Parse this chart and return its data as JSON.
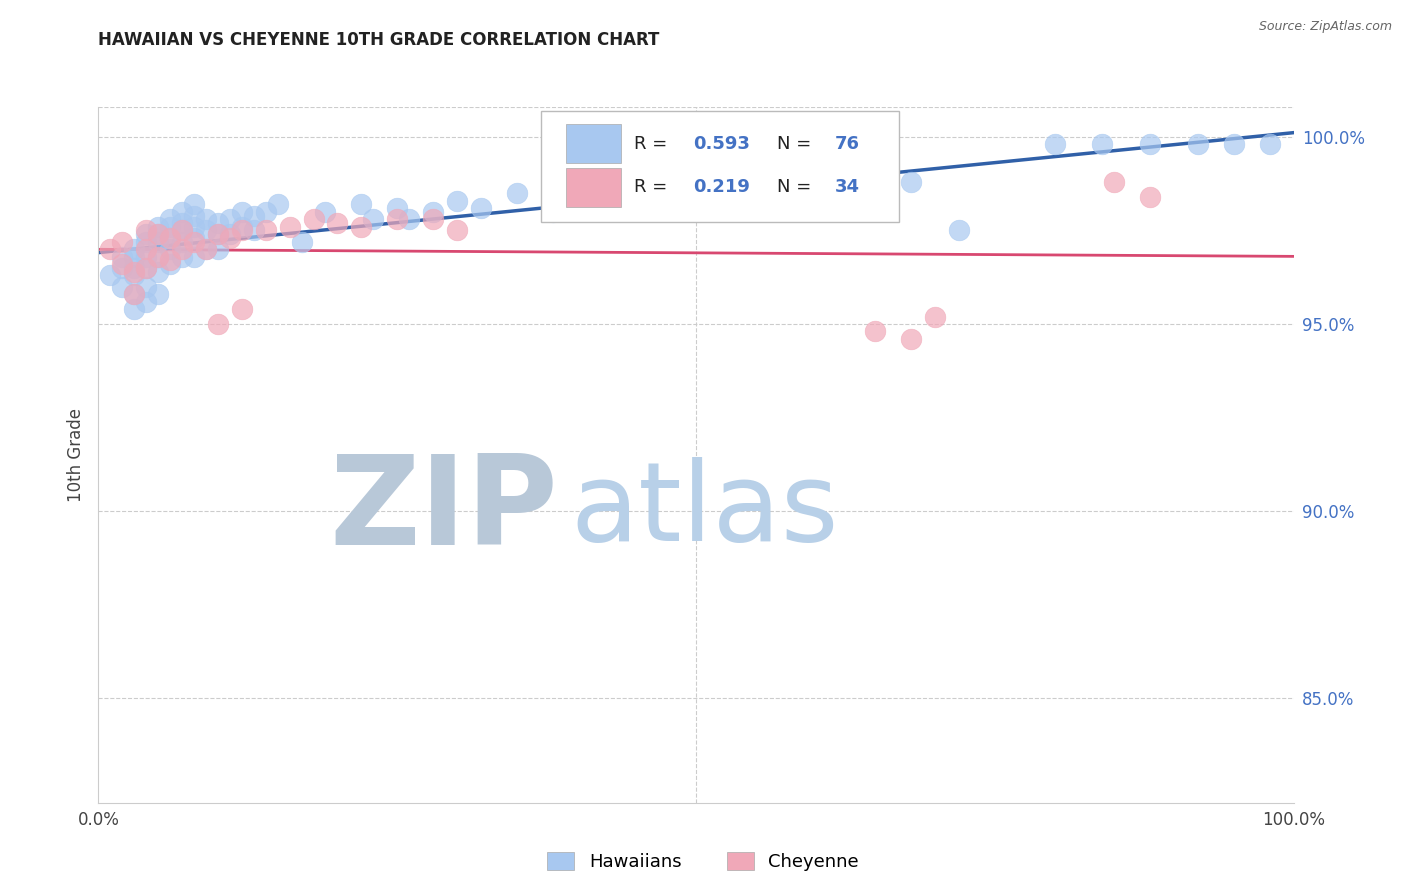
{
  "title": "HAWAIIAN VS CHEYENNE 10TH GRADE CORRELATION CHART",
  "source": "Source: ZipAtlas.com",
  "ylabel": "10th Grade",
  "ytick_values": [
    0.85,
    0.9,
    0.95,
    1.0
  ],
  "ytick_labels": [
    "85.0%",
    "90.0%",
    "95.0%",
    "100.0%"
  ],
  "xlim": [
    0.0,
    1.0
  ],
  "ylim": [
    0.822,
    1.008
  ],
  "blue_color": "#a8c8f0",
  "pink_color": "#f0a8b8",
  "blue_line_color": "#3060a8",
  "pink_line_color": "#d84870",
  "background_color": "#ffffff",
  "grid_color": "#cccccc",
  "watermark_zip_color": "#b8c8d8",
  "watermark_atlas_color": "#b8d0e8",
  "legend_r_n_color": "#4472c4",
  "hawaiian_x": [
    0.01,
    0.02,
    0.02,
    0.02,
    0.03,
    0.03,
    0.03,
    0.03,
    0.03,
    0.03,
    0.04,
    0.04,
    0.04,
    0.04,
    0.04,
    0.04,
    0.05,
    0.05,
    0.05,
    0.05,
    0.05,
    0.05,
    0.06,
    0.06,
    0.06,
    0.06,
    0.06,
    0.07,
    0.07,
    0.07,
    0.07,
    0.07,
    0.08,
    0.08,
    0.08,
    0.08,
    0.08,
    0.09,
    0.09,
    0.09,
    0.1,
    0.1,
    0.1,
    0.11,
    0.11,
    0.12,
    0.12,
    0.13,
    0.13,
    0.14,
    0.15,
    0.17,
    0.19,
    0.22,
    0.23,
    0.25,
    0.26,
    0.28,
    0.3,
    0.32,
    0.35,
    0.38,
    0.42,
    0.44,
    0.47,
    0.5,
    0.52,
    0.56,
    0.68,
    0.72,
    0.8,
    0.84,
    0.88,
    0.92,
    0.95,
    0.98
  ],
  "hawaiian_y": [
    0.963,
    0.965,
    0.968,
    0.96,
    0.97,
    0.968,
    0.965,
    0.963,
    0.958,
    0.954,
    0.974,
    0.972,
    0.968,
    0.965,
    0.96,
    0.956,
    0.976,
    0.974,
    0.972,
    0.968,
    0.964,
    0.958,
    0.978,
    0.976,
    0.973,
    0.97,
    0.966,
    0.98,
    0.977,
    0.975,
    0.972,
    0.968,
    0.982,
    0.979,
    0.976,
    0.973,
    0.968,
    0.978,
    0.975,
    0.97,
    0.977,
    0.974,
    0.97,
    0.978,
    0.974,
    0.98,
    0.976,
    0.979,
    0.975,
    0.98,
    0.982,
    0.972,
    0.98,
    0.982,
    0.978,
    0.981,
    0.978,
    0.98,
    0.983,
    0.981,
    0.985,
    0.98,
    0.987,
    0.985,
    0.988,
    0.985,
    0.984,
    0.983,
    0.988,
    0.975,
    0.998,
    0.998,
    0.998,
    0.998,
    0.998,
    0.998
  ],
  "cheyenne_x": [
    0.01,
    0.02,
    0.02,
    0.03,
    0.03,
    0.04,
    0.04,
    0.04,
    0.05,
    0.05,
    0.06,
    0.06,
    0.07,
    0.07,
    0.08,
    0.09,
    0.1,
    0.11,
    0.12,
    0.14,
    0.16,
    0.18,
    0.2,
    0.22,
    0.25,
    0.28,
    0.3,
    0.65,
    0.68,
    0.7,
    0.85,
    0.88,
    0.1,
    0.12
  ],
  "cheyenne_y": [
    0.97,
    0.966,
    0.972,
    0.964,
    0.958,
    0.975,
    0.97,
    0.965,
    0.974,
    0.968,
    0.973,
    0.967,
    0.975,
    0.97,
    0.972,
    0.97,
    0.974,
    0.973,
    0.975,
    0.975,
    0.976,
    0.978,
    0.977,
    0.976,
    0.978,
    0.978,
    0.975,
    0.948,
    0.946,
    0.952,
    0.988,
    0.984,
    0.95,
    0.954
  ]
}
